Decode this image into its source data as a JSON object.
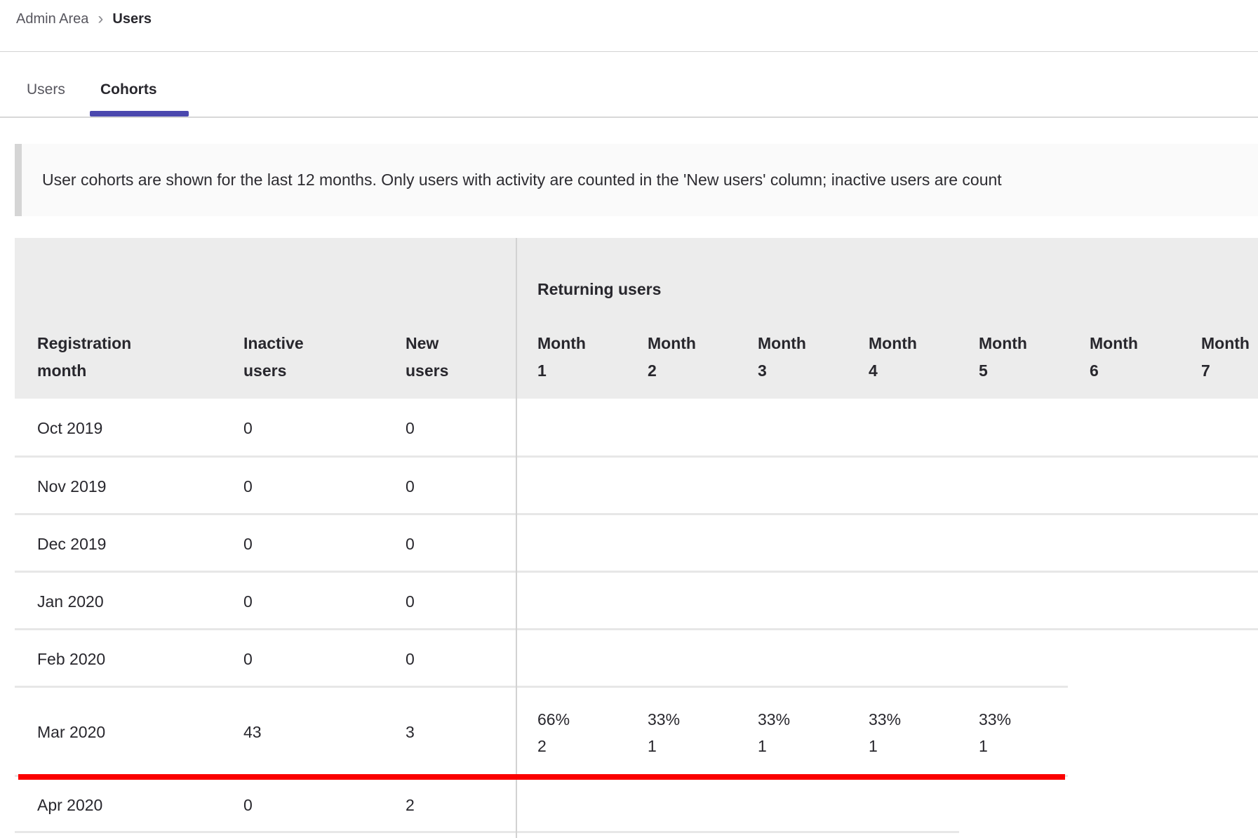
{
  "breadcrumb": {
    "parent": "Admin Area",
    "chevron": "›",
    "current": "Users"
  },
  "tabs": {
    "users": "Users",
    "cohorts": "Cohorts"
  },
  "banner": {
    "text": "User cohorts are shown for the last 12 months. Only users with activity are counted in the 'New users' column; inactive users are count"
  },
  "table": {
    "group_header": "Returning users",
    "columns": {
      "registration": "Registration month",
      "inactive": "Inactive users",
      "new": "New users"
    },
    "month_columns": [
      "Month 1",
      "Month 2",
      "Month 3",
      "Month 4",
      "Month 5",
      "Month 6",
      "Month 7"
    ],
    "rows": [
      {
        "month": "Oct 2019",
        "inactive": "0",
        "new": "0"
      },
      {
        "month": "Nov 2019",
        "inactive": "0",
        "new": "0"
      },
      {
        "month": "Dec 2019",
        "inactive": "0",
        "new": "0"
      },
      {
        "month": "Jan 2020",
        "inactive": "0",
        "new": "0"
      },
      {
        "month": "Feb 2020",
        "inactive": "0",
        "new": "0"
      },
      {
        "month": "Mar 2020",
        "inactive": "43",
        "new": "3",
        "returning": [
          {
            "pct": "66%",
            "count": "2"
          },
          {
            "pct": "33%",
            "count": "1"
          },
          {
            "pct": "33%",
            "count": "1"
          },
          {
            "pct": "33%",
            "count": "1"
          },
          {
            "pct": "33%",
            "count": "1"
          }
        ]
      },
      {
        "month": "Apr 2020",
        "inactive": "0",
        "new": "2"
      }
    ]
  },
  "colors": {
    "accent_purple": "#4b48ae",
    "annotation_red": "#fb0000"
  }
}
